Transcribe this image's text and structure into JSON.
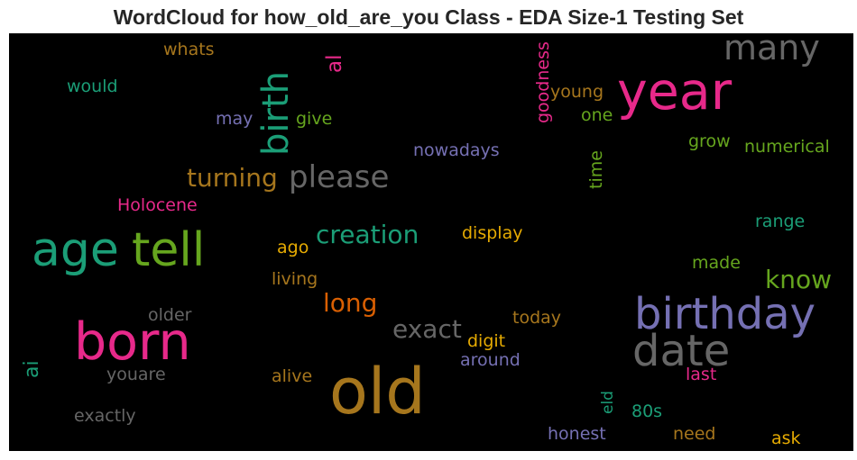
{
  "title": "WordCloud for how_old_are_you Class - EDA Size-1 Testing Set",
  "colors": {
    "pink": "#e7298a",
    "green": "#1b9e77",
    "olive": "#66a61e",
    "gold": "#a6761d",
    "purple": "#7570b3",
    "gray": "#666666",
    "orange": "#d95f02",
    "yellow": "#e6ab02"
  },
  "words": {
    "old": "old",
    "year": "year",
    "birthday": "birthday",
    "born": "born",
    "age": "age",
    "tell": "tell",
    "date": "date",
    "birth": "birth",
    "many": "many",
    "please": "please",
    "turning": "turning",
    "creation": "creation",
    "long": "long",
    "exact": "exact",
    "know": "know",
    "al": "al",
    "ai": "ai",
    "whats": "whats",
    "would": "would",
    "may": "may",
    "give": "give",
    "goodness": "goodness",
    "young": "young",
    "one": "one",
    "nowadays": "nowadays",
    "grow": "grow",
    "numerical": "numerical",
    "time": "time",
    "holocene": "Holocene",
    "range": "range",
    "display": "display",
    "ago": "ago",
    "living": "living",
    "made": "made",
    "older": "older",
    "today": "today",
    "digit": "digit",
    "around": "around",
    "youare": "youare",
    "alive": "alive",
    "last": "last",
    "eld": "eld",
    "80s": "80s",
    "exactly": "exactly",
    "honest": "honest",
    "need": "need",
    "ask": "ask"
  }
}
